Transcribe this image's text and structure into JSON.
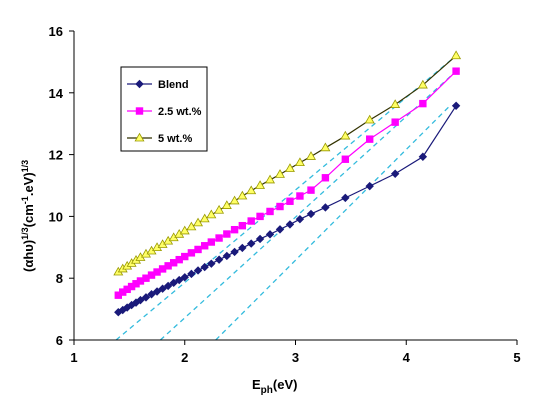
{
  "chart_data": {
    "type": "line",
    "xlabel_main": "E",
    "xlabel_sub": "ph",
    "xlabel_unit": "(eV)",
    "ylabel_a": "(αhυ)",
    "ylabel_sup1": "1/3",
    "ylabel_b": "(cm",
    "ylabel_c": "-1",
    "ylabel_d": ".eV)",
    "ylabel_sup2": "1/3",
    "xlim": [
      1,
      5
    ],
    "ylim": [
      6,
      16
    ],
    "x_ticks": [
      "1",
      "2",
      "3",
      "4",
      "5"
    ],
    "y_ticks": [
      "6",
      "8",
      "10",
      "12",
      "14",
      "16"
    ],
    "legend_position": "top-left",
    "series": [
      {
        "name": "Blend",
        "color": "#1a1a7a",
        "marker": "diamond",
        "x": [
          1.4,
          1.44,
          1.48,
          1.52,
          1.56,
          1.6,
          1.65,
          1.7,
          1.75,
          1.8,
          1.85,
          1.9,
          1.95,
          2.0,
          2.06,
          2.12,
          2.18,
          2.24,
          2.31,
          2.38,
          2.45,
          2.52,
          2.6,
          2.68,
          2.77,
          2.86,
          2.95,
          3.04,
          3.14,
          3.27,
          3.45,
          3.67,
          3.9,
          4.15,
          4.45
        ],
        "y": [
          6.9,
          6.97,
          7.05,
          7.13,
          7.21,
          7.29,
          7.38,
          7.48,
          7.57,
          7.66,
          7.75,
          7.85,
          7.94,
          8.03,
          8.14,
          8.25,
          8.36,
          8.47,
          8.6,
          8.72,
          8.85,
          8.98,
          9.12,
          9.27,
          9.42,
          9.58,
          9.74,
          9.91,
          10.08,
          10.29,
          10.6,
          10.98,
          11.38,
          11.93,
          13.58
        ]
      },
      {
        "name": "2.5 wt.%",
        "color": "#ff00ff",
        "marker": "square",
        "x": [
          1.4,
          1.44,
          1.48,
          1.52,
          1.56,
          1.6,
          1.65,
          1.7,
          1.75,
          1.8,
          1.85,
          1.9,
          1.95,
          2.0,
          2.06,
          2.12,
          2.18,
          2.24,
          2.31,
          2.38,
          2.45,
          2.52,
          2.6,
          2.68,
          2.77,
          2.86,
          2.95,
          3.04,
          3.14,
          3.27,
          3.45,
          3.67,
          3.9,
          4.15,
          4.45
        ],
        "y": [
          7.45,
          7.55,
          7.64,
          7.73,
          7.82,
          7.91,
          8.0,
          8.1,
          8.2,
          8.3,
          8.4,
          8.5,
          8.6,
          8.7,
          8.82,
          8.93,
          9.05,
          9.17,
          9.3,
          9.43,
          9.57,
          9.7,
          9.85,
          10.0,
          10.16,
          10.32,
          10.49,
          10.66,
          10.85,
          11.25,
          11.85,
          12.5,
          13.05,
          13.65,
          14.7
        ]
      },
      {
        "name": "5 wt.%",
        "color": "#333300",
        "marker_fill": "#ffff66",
        "marker_stroke": "#999900",
        "marker": "triangle",
        "x": [
          1.4,
          1.44,
          1.48,
          1.52,
          1.56,
          1.6,
          1.65,
          1.7,
          1.75,
          1.8,
          1.85,
          1.9,
          1.95,
          2.0,
          2.06,
          2.12,
          2.18,
          2.24,
          2.31,
          2.38,
          2.45,
          2.52,
          2.6,
          2.68,
          2.77,
          2.86,
          2.95,
          3.04,
          3.14,
          3.27,
          3.45,
          3.67,
          3.9,
          4.15,
          4.45
        ],
        "y": [
          8.2,
          8.3,
          8.39,
          8.48,
          8.58,
          8.67,
          8.78,
          8.88,
          8.99,
          9.09,
          9.2,
          9.31,
          9.42,
          9.53,
          9.66,
          9.79,
          9.92,
          10.05,
          10.2,
          10.35,
          10.5,
          10.66,
          10.83,
          11.0,
          11.18,
          11.36,
          11.55,
          11.74,
          11.94,
          12.22,
          12.6,
          13.12,
          13.62,
          14.25,
          15.2
        ]
      }
    ],
    "fit_lines": [
      {
        "color": "#33bbdd",
        "x": [
          1.38,
          4.45
        ],
        "y": [
          6.0,
          15.2
        ]
      },
      {
        "color": "#33bbdd",
        "x": [
          1.78,
          4.45
        ],
        "y": [
          6.0,
          14.7
        ]
      },
      {
        "color": "#33bbdd",
        "x": [
          2.28,
          4.4
        ],
        "y": [
          6.0,
          13.6
        ]
      }
    ]
  }
}
